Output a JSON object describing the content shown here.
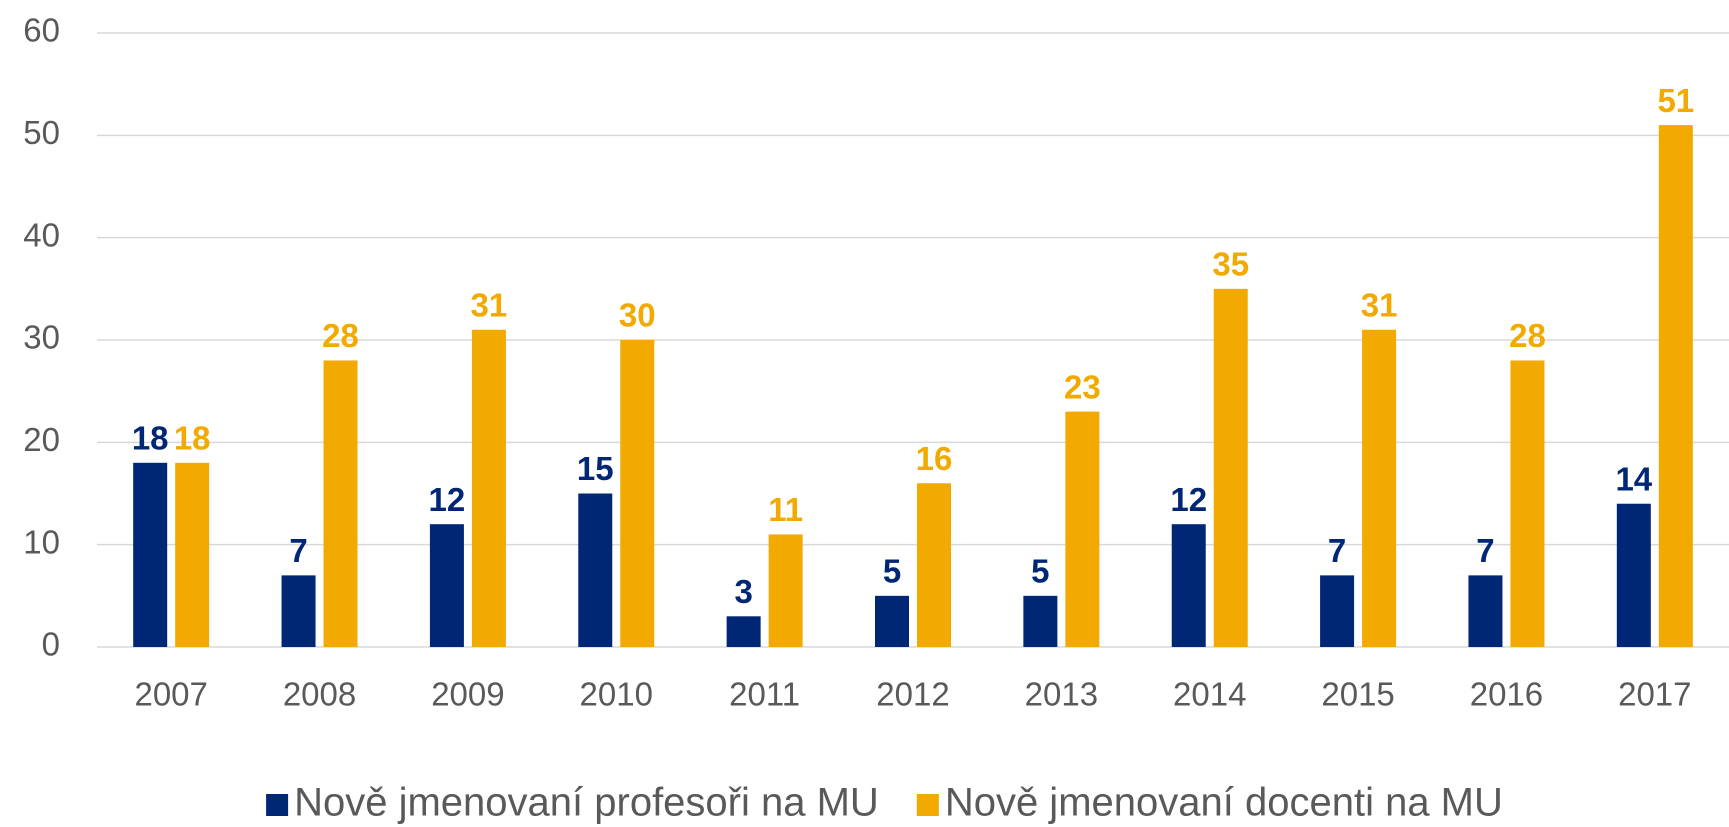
{
  "chart_data": {
    "type": "bar",
    "categories": [
      "2007",
      "2008",
      "2009",
      "2010",
      "2011",
      "2012",
      "2013",
      "2014",
      "2015",
      "2016",
      "2017"
    ],
    "series": [
      {
        "name": "Nově jmenovaní profesoři na MU",
        "color": "#002776",
        "values": [
          18,
          7,
          12,
          15,
          3,
          5,
          5,
          12,
          7,
          7,
          14
        ]
      },
      {
        "name": "Nově jmenovaní docenti na MU",
        "color": "#f2a900",
        "values": [
          18,
          28,
          31,
          30,
          11,
          16,
          23,
          35,
          31,
          28,
          51
        ]
      }
    ],
    "ylim": [
      0,
      60
    ],
    "yticks": [
      0,
      10,
      20,
      30,
      40,
      50,
      60
    ],
    "grid": true,
    "legend": "bottom"
  }
}
